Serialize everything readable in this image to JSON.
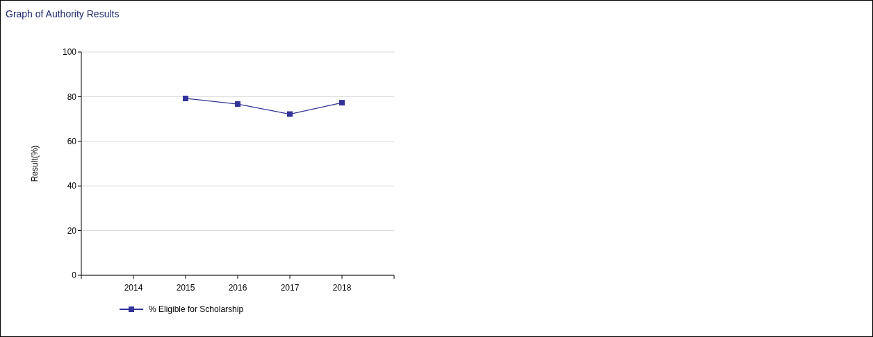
{
  "chart_data": {
    "type": "line",
    "title": "Graph of Authority Results",
    "ylabel": "Result(%)",
    "categories": [
      "2014",
      "2015",
      "2016",
      "2017",
      "2018"
    ],
    "series": [
      {
        "name": "% Eligible for Scholarship",
        "color": "#333399",
        "values": [
          null,
          79.2,
          76.7,
          72.2,
          77.3
        ]
      }
    ],
    "ylim": [
      0,
      100
    ],
    "yticks": [
      0,
      20,
      40,
      60,
      80,
      100
    ],
    "grid": "y",
    "legend": "bottom",
    "marker": "square",
    "line_style": "solid"
  }
}
